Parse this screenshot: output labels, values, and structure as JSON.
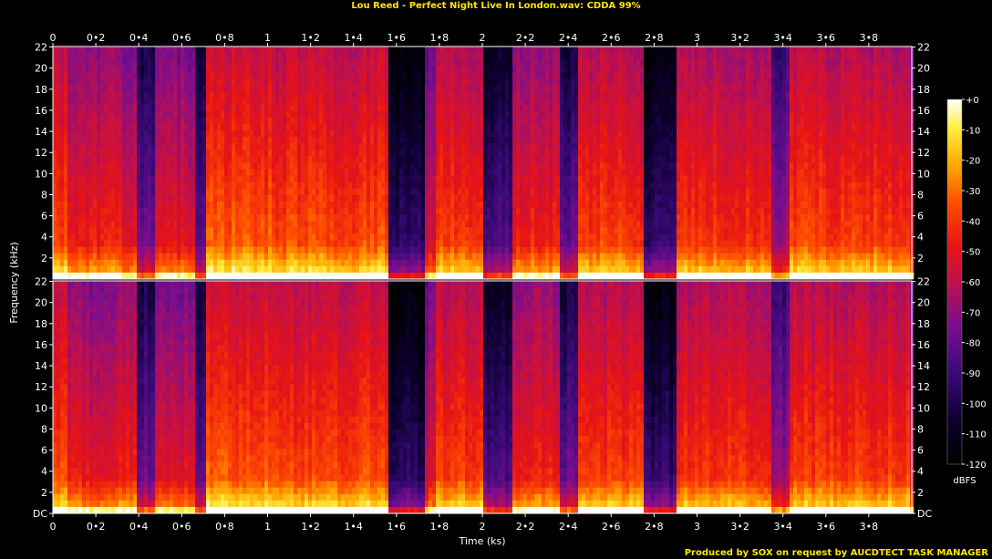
{
  "chart_data": {
    "type": "heatmap",
    "title": "Lou Reed - Perfect Night Live In London.wav: CDDA 99%",
    "xlabel": "Time (ks)",
    "ylabel": "Frequency (kHz)",
    "footer": "Produced by SOX on request by AUCDTECT TASK MANAGER",
    "colorbar_label": "dBFS",
    "xlim": [
      0,
      4.0
    ],
    "ylim_khz": [
      0,
      22.05
    ],
    "x_ticks": [
      "0",
      "0•2",
      "0•4",
      "0•6",
      "0•8",
      "1",
      "1•2",
      "1•4",
      "1•6",
      "1•8",
      "2",
      "2•2",
      "2•4",
      "2•6",
      "2•8",
      "3",
      "3•2",
      "3•4",
      "3•6",
      "3•8"
    ],
    "y_ticks_top": [
      "22",
      "20",
      "18",
      "16",
      "14",
      "12",
      "10",
      "8",
      "6",
      "4",
      "2"
    ],
    "y_ticks_bottom": [
      "22",
      "20",
      "18",
      "16",
      "14",
      "12",
      "10",
      "8",
      "6",
      "4",
      "2",
      "DC"
    ],
    "colorbar_ticks": [
      "+0",
      "-10",
      "-20",
      "-30",
      "-40",
      "-50",
      "-60",
      "-70",
      "-80",
      "-90",
      "-100",
      "-110",
      "-120"
    ],
    "colorbar_range_db": [
      -120,
      0
    ],
    "channels": 2,
    "colormap": [
      "#000000",
      "#1a0050",
      "#4b0c8a",
      "#8a0f8a",
      "#c8103c",
      "#e8140e",
      "#ff5a00",
      "#ffb400",
      "#ffee40",
      "#ffffff"
    ],
    "segments": [
      {
        "start": 0.0,
        "end": 0.06,
        "level": 0.72
      },
      {
        "start": 0.06,
        "end": 0.38,
        "level": 0.62
      },
      {
        "start": 0.38,
        "end": 0.47,
        "level": 0.38
      },
      {
        "start": 0.47,
        "end": 0.66,
        "level": 0.6
      },
      {
        "start": 0.66,
        "end": 0.7,
        "level": 0.32
      },
      {
        "start": 0.7,
        "end": 1.03,
        "level": 0.74
      },
      {
        "start": 1.03,
        "end": 1.55,
        "level": 0.72
      },
      {
        "start": 1.55,
        "end": 1.72,
        "level": 0.22
      },
      {
        "start": 1.72,
        "end": 1.78,
        "level": 0.55
      },
      {
        "start": 1.78,
        "end": 2.0,
        "level": 0.7
      },
      {
        "start": 2.0,
        "end": 2.14,
        "level": 0.3
      },
      {
        "start": 2.14,
        "end": 2.36,
        "level": 0.64
      },
      {
        "start": 2.36,
        "end": 2.44,
        "level": 0.36
      },
      {
        "start": 2.44,
        "end": 2.74,
        "level": 0.7
      },
      {
        "start": 2.74,
        "end": 2.89,
        "level": 0.24
      },
      {
        "start": 2.89,
        "end": 3.34,
        "level": 0.68
      },
      {
        "start": 3.34,
        "end": 3.42,
        "level": 0.45
      },
      {
        "start": 3.42,
        "end": 3.98,
        "level": 0.7
      }
    ]
  }
}
